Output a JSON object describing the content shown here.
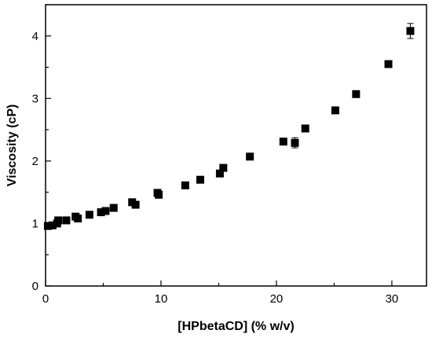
{
  "chart_data": {
    "type": "scatter",
    "xlabel": "[HPbetaCD] (% w/v)",
    "ylabel": "Viscosity (cP)",
    "xlim": [
      0,
      33
    ],
    "ylim": [
      0,
      4.5
    ],
    "x_ticks": [
      0,
      10,
      20,
      30
    ],
    "y_ticks": [
      0,
      1,
      2,
      3,
      4
    ],
    "grid": false,
    "series": [
      {
        "marker": "square",
        "color": "#000000",
        "points": [
          {
            "x": 0.2,
            "y": 0.96
          },
          {
            "x": 0.6,
            "y": 0.97
          },
          {
            "x": 1.0,
            "y": 1.0
          },
          {
            "x": 1.1,
            "y": 1.05
          },
          {
            "x": 1.8,
            "y": 1.05
          },
          {
            "x": 2.6,
            "y": 1.11
          },
          {
            "x": 2.8,
            "y": 1.08
          },
          {
            "x": 3.8,
            "y": 1.14
          },
          {
            "x": 4.8,
            "y": 1.18
          },
          {
            "x": 5.2,
            "y": 1.2
          },
          {
            "x": 5.9,
            "y": 1.25
          },
          {
            "x": 7.5,
            "y": 1.34
          },
          {
            "x": 7.8,
            "y": 1.3
          },
          {
            "x": 9.7,
            "y": 1.49
          },
          {
            "x": 9.8,
            "y": 1.46
          },
          {
            "x": 12.1,
            "y": 1.61
          },
          {
            "x": 13.4,
            "y": 1.7
          },
          {
            "x": 15.1,
            "y": 1.8
          },
          {
            "x": 15.4,
            "y": 1.89
          },
          {
            "x": 17.7,
            "y": 2.07
          },
          {
            "x": 20.6,
            "y": 2.31
          },
          {
            "x": 21.6,
            "y": 2.29,
            "err": 0.08
          },
          {
            "x": 22.5,
            "y": 2.52
          },
          {
            "x": 25.1,
            "y": 2.81
          },
          {
            "x": 26.9,
            "y": 3.07
          },
          {
            "x": 29.7,
            "y": 3.55
          },
          {
            "x": 31.6,
            "y": 4.08,
            "err": 0.12
          }
        ]
      }
    ]
  }
}
